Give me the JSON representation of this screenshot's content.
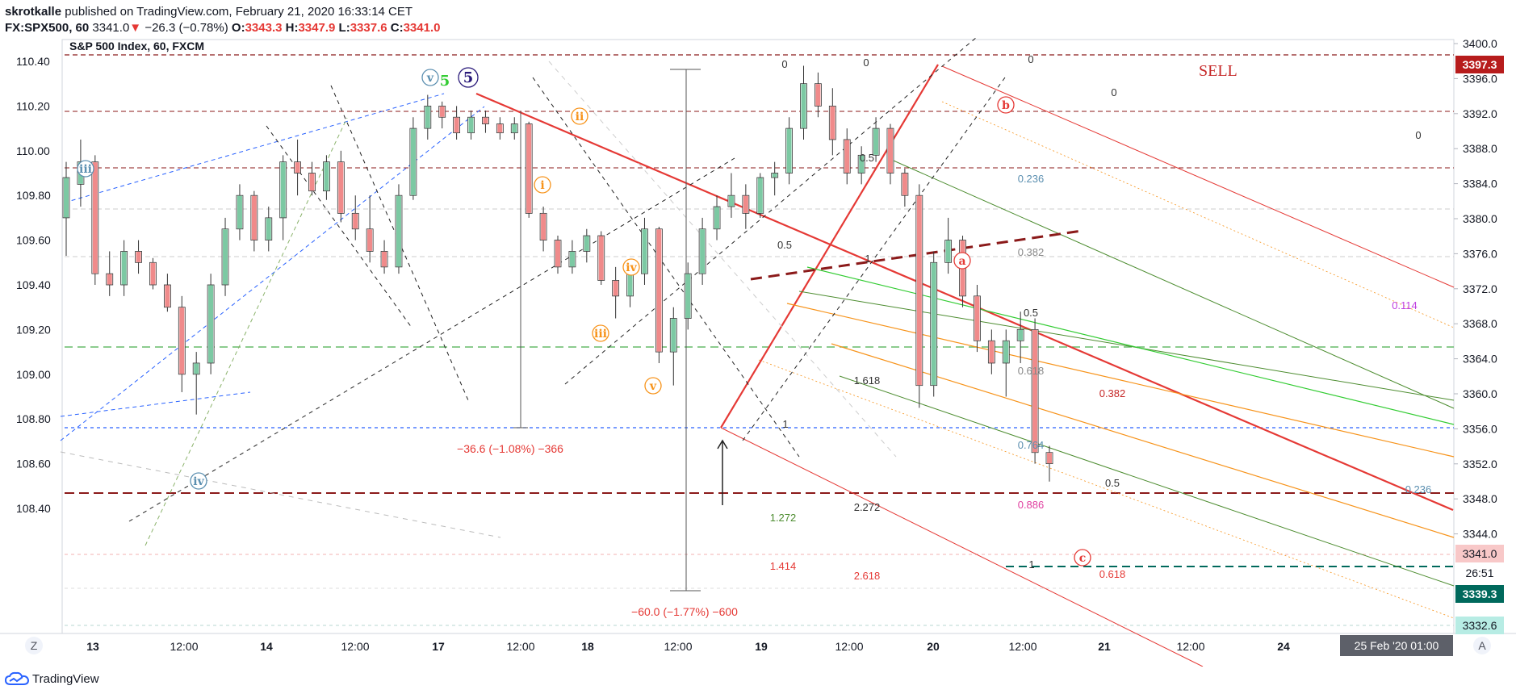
{
  "header": {
    "author": "skrotkalle",
    "published": " published on TradingView.com, February 21, 2020 16:33:14 CET",
    "symbol": "FX:SPX500, 60",
    "last": "3341.0",
    "arrow": "▼",
    "change": "−26.3 (−0.78%)",
    "o_label": "O:",
    "o_val": "3343.3",
    "h_label": "H:",
    "h_val": "3347.9",
    "l_label": "L:",
    "l_val": "3337.6",
    "c_label": "C:",
    "c_val": "3341.0"
  },
  "chart_title": "S&P 500 Index, 60, FXCM",
  "footer": {
    "brand": "TradingView"
  },
  "colors": {
    "up": "#26a69a",
    "down": "#ef5350",
    "red": "#e53935",
    "darkred": "#8b1a1a",
    "orange": "#f7931a",
    "green": "#33cc33",
    "darkgreen": "#4c8c2f",
    "blue": "#2962ff",
    "teal": "#00695c",
    "purple": "#2a1a7a"
  },
  "chart_data": {
    "type": "candlestick",
    "title": "S&P 500 Index, 60, FXCM",
    "left_axis": {
      "ticks": [
        "110.40",
        "110.20",
        "110.00",
        "109.80",
        "109.60",
        "109.40",
        "109.20",
        "109.00",
        "108.80",
        "108.60",
        "108.40"
      ]
    },
    "right_axis": {
      "ticks": [
        "3400.0",
        "3396.0",
        "3392.0",
        "3388.0",
        "3384.0",
        "3380.0",
        "3376.0",
        "3372.0",
        "3368.0",
        "3364.0",
        "3360.0",
        "3356.0",
        "3352.0",
        "3348.0",
        "3344.0",
        "3341.0",
        "3339.3",
        "3332.6"
      ]
    },
    "x_ticks": [
      "13",
      "12:00",
      "14",
      "12:00",
      "17",
      "12:00",
      "18",
      "12:00",
      "19",
      "12:00",
      "20",
      "12:00",
      "21",
      "12:00",
      "24"
    ],
    "price_tags": [
      {
        "label": "3397.3",
        "kind": "sell"
      },
      {
        "label": "3341.0",
        "kind": "last"
      },
      {
        "label": "26:51",
        "kind": "timer"
      },
      {
        "label": "3339.3",
        "kind": "teal"
      },
      {
        "label": "3332.6",
        "kind": "light"
      }
    ],
    "date_tag": "25 Feb '20   01:00",
    "wave_labels": [
      {
        "text": "iii",
        "color": "blue"
      },
      {
        "text": "iv",
        "color": "blue"
      },
      {
        "text": "v",
        "color": "blue"
      },
      {
        "text": "5",
        "color": "green"
      },
      {
        "text": "5",
        "color": "purple"
      },
      {
        "text": "i",
        "color": "orange"
      },
      {
        "text": "ii",
        "color": "orange"
      },
      {
        "text": "iii",
        "color": "orange"
      },
      {
        "text": "iv",
        "color": "orange"
      },
      {
        "text": "v",
        "color": "orange"
      },
      {
        "text": "a",
        "color": "red"
      },
      {
        "text": "b",
        "color": "red"
      },
      {
        "text": "c",
        "color": "red"
      }
    ],
    "annotations": [
      "SELL",
      "−36.6 (−1.08%) −366",
      "−60.0 (−1.77%) −600"
    ],
    "fib_labels": [
      "0",
      "0",
      "0",
      "0",
      "0",
      "0.5",
      "0.5",
      "1",
      "1",
      "1",
      "0.236",
      "0.382",
      "0.5",
      "0.618",
      "0.764",
      "0.886",
      "0.382",
      "0.5",
      "0.618",
      "1.618",
      "1.272",
      "2.272",
      "1.414",
      "2.618",
      "0.114",
      "0.236"
    ],
    "candles": [
      [
        109.7,
        109.95,
        109.53,
        109.88
      ],
      [
        109.85,
        110.05,
        109.75,
        109.95
      ],
      [
        109.95,
        109.98,
        109.4,
        109.45
      ],
      [
        109.45,
        109.55,
        109.35,
        109.4
      ],
      [
        109.4,
        109.6,
        109.35,
        109.55
      ],
      [
        109.55,
        109.6,
        109.45,
        109.5
      ],
      [
        109.5,
        109.52,
        109.38,
        109.4
      ],
      [
        109.4,
        109.45,
        109.28,
        109.3
      ],
      [
        109.3,
        109.35,
        108.92,
        109.0
      ],
      [
        109.0,
        109.1,
        108.82,
        109.05
      ],
      [
        109.05,
        109.45,
        109.0,
        109.4
      ],
      [
        109.4,
        109.7,
        109.35,
        109.65
      ],
      [
        109.65,
        109.85,
        109.6,
        109.8
      ],
      [
        109.8,
        109.82,
        109.55,
        109.6
      ],
      [
        109.6,
        109.75,
        109.55,
        109.7
      ],
      [
        109.7,
        109.98,
        109.6,
        109.95
      ],
      [
        109.95,
        110.05,
        109.8,
        109.9
      ],
      [
        109.9,
        109.95,
        109.8,
        109.82
      ],
      [
        109.82,
        109.98,
        109.78,
        109.95
      ],
      [
        109.95,
        110.0,
        109.68,
        109.72
      ],
      [
        109.72,
        109.8,
        109.6,
        109.65
      ],
      [
        109.65,
        109.8,
        109.5,
        109.55
      ],
      [
        109.55,
        109.6,
        109.45,
        109.48
      ],
      [
        109.48,
        109.85,
        109.45,
        109.8
      ],
      [
        109.8,
        110.15,
        109.78,
        110.1
      ],
      [
        110.1,
        110.25,
        110.05,
        110.2
      ],
      [
        110.2,
        110.22,
        110.1,
        110.15
      ],
      [
        110.15,
        110.2,
        110.05,
        110.08
      ],
      [
        110.08,
        110.18,
        110.05,
        110.15
      ],
      [
        110.15,
        110.18,
        110.08,
        110.12
      ],
      [
        110.12,
        110.15,
        110.05,
        110.08
      ],
      [
        110.08,
        110.15,
        110.05,
        110.12
      ],
      [
        110.12,
        110.13,
        109.7,
        109.72
      ],
      [
        109.72,
        109.75,
        109.55,
        109.6
      ],
      [
        109.6,
        109.62,
        109.45,
        109.48
      ],
      [
        109.48,
        109.6,
        109.45,
        109.55
      ],
      [
        109.55,
        109.65,
        109.5,
        109.62
      ],
      [
        109.62,
        109.64,
        109.4,
        109.42
      ],
      [
        109.42,
        109.48,
        109.25,
        109.35
      ],
      [
        109.35,
        109.5,
        109.3,
        109.45
      ],
      [
        109.45,
        109.7,
        109.4,
        109.65
      ],
      [
        109.65,
        109.66,
        109.05,
        109.1
      ],
      [
        109.1,
        109.3,
        108.95,
        109.25
      ],
      [
        109.25,
        109.5,
        109.2,
        109.45
      ],
      [
        109.45,
        109.7,
        109.4,
        109.65
      ],
      [
        109.65,
        109.8,
        109.6,
        109.75
      ],
      [
        109.75,
        109.9,
        109.7,
        109.8
      ],
      [
        109.8,
        109.85,
        109.65,
        109.72
      ],
      [
        109.72,
        109.9,
        109.7,
        109.88
      ],
      [
        109.88,
        109.95,
        109.8,
        109.9
      ],
      [
        109.9,
        110.15,
        109.85,
        110.1
      ],
      [
        110.1,
        110.38,
        110.05,
        110.3
      ],
      [
        110.3,
        110.35,
        110.15,
        110.2
      ],
      [
        110.2,
        110.28,
        109.98,
        110.05
      ],
      [
        110.05,
        110.1,
        109.85,
        109.9
      ],
      [
        109.9,
        110.02,
        109.85,
        109.98
      ],
      [
        109.98,
        110.15,
        109.95,
        110.1
      ],
      [
        110.1,
        110.12,
        109.85,
        109.9
      ],
      [
        109.9,
        109.92,
        109.75,
        109.8
      ],
      [
        109.8,
        109.85,
        108.85,
        108.95
      ],
      [
        108.95,
        109.55,
        108.9,
        109.5
      ],
      [
        109.5,
        109.7,
        109.45,
        109.6
      ],
      [
        109.6,
        109.62,
        109.3,
        109.35
      ],
      [
        109.35,
        109.4,
        109.1,
        109.15
      ],
      [
        109.15,
        109.2,
        109.0,
        109.05
      ],
      [
        109.05,
        109.2,
        108.9,
        109.15
      ],
      [
        109.15,
        109.28,
        109.05,
        109.2
      ],
      [
        109.2,
        109.25,
        108.6,
        108.65
      ],
      [
        108.65,
        108.68,
        108.52,
        108.6
      ]
    ]
  }
}
